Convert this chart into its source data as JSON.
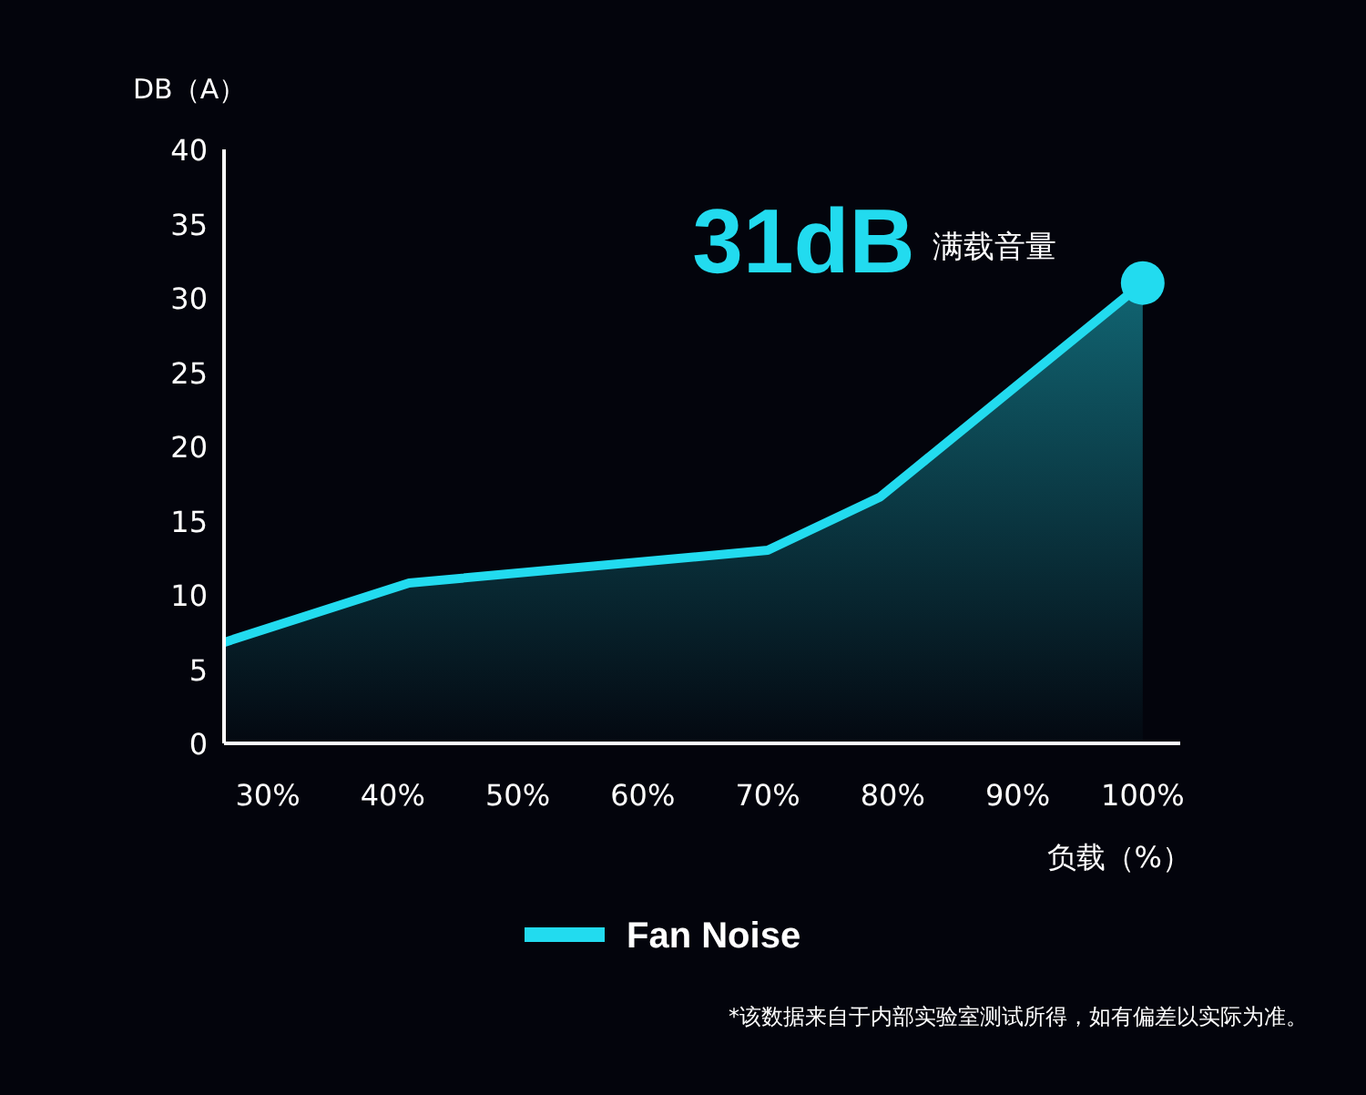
{
  "chart_data": {
    "type": "area",
    "ylabel": "DB（A）",
    "xlabel": "负载（%）",
    "x": [
      26.5,
      41.3,
      70,
      79,
      100
    ],
    "series": [
      {
        "name": "Fan Noise",
        "color": "#22dbef",
        "values": [
          6.8,
          10.8,
          13,
          16.6,
          31
        ]
      }
    ],
    "xlim": [
      26.5,
      103
    ],
    "xticks": [
      {
        "value": 30,
        "label": "30%"
      },
      {
        "value": 40,
        "label": "40%"
      },
      {
        "value": 50,
        "label": "50%"
      },
      {
        "value": 60,
        "label": "60%"
      },
      {
        "value": 70,
        "label": "70%"
      },
      {
        "value": 80,
        "label": "80%"
      },
      {
        "value": 90,
        "label": "90%"
      },
      {
        "value": 100,
        "label": "100%"
      }
    ],
    "ylim": [
      0,
      40
    ],
    "yticks": [
      0,
      5,
      10,
      15,
      20,
      25,
      30,
      35,
      40
    ],
    "grid": false,
    "legend": "bottom",
    "annotations": [
      {
        "text": "31dB",
        "x": 100,
        "y": 31
      },
      "满载音量",
      "*该数据来自于内部实验室测试所得，如有偏差以实际为准。"
    ]
  }
}
